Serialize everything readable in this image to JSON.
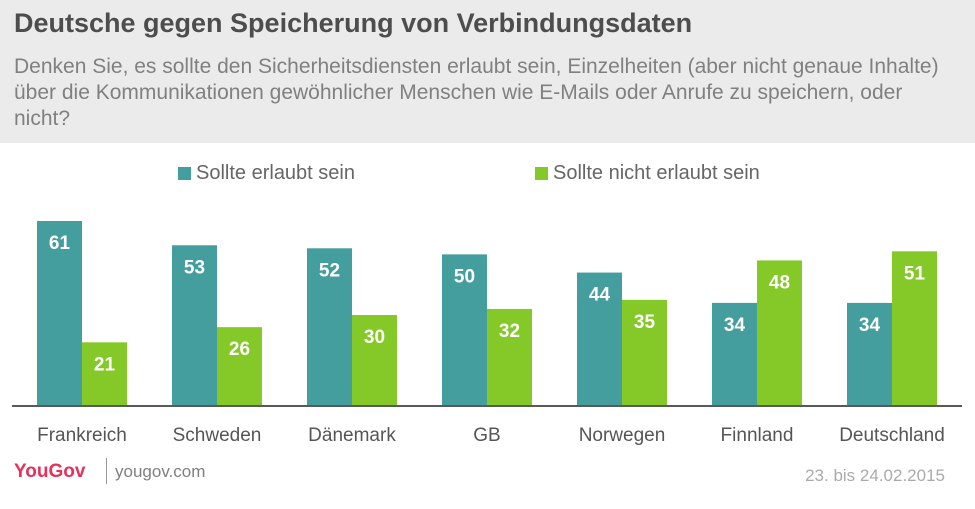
{
  "header": {
    "title": "Deutsche gegen Speicherung von Verbindungsdaten",
    "subtitle": "Denken Sie, es sollte den Sicherheitsdiensten erlaubt sein, Einzelheiten (aber nicht genaue Inhalte) über die Kommunikationen gewöhnlicher Menschen wie E-Mails oder Anrufe zu speichern, oder nicht?"
  },
  "colors": {
    "series1": "#459e9e",
    "series2": "#84c928",
    "label": "#ffffff",
    "axis": "#595959",
    "brand": "#e6325a"
  },
  "chart_data": {
    "type": "bar",
    "categories": [
      "Frankreich",
      "Schweden",
      "Dänemark",
      "GB",
      "Norwegen",
      "Finnland",
      "Deutschland"
    ],
    "series": [
      {
        "name": "Sollte erlaubt sein",
        "values": [
          61,
          53,
          52,
          50,
          44,
          34,
          34
        ]
      },
      {
        "name": "Sollte nicht erlaubt sein",
        "values": [
          21,
          26,
          30,
          32,
          35,
          48,
          51
        ]
      }
    ],
    "title": "Deutsche gegen Speicherung von Verbindungsdaten",
    "xlabel": "",
    "ylabel": "",
    "ylim": [
      0,
      61
    ],
    "grid": false,
    "legend": "top-center",
    "data_labels": true
  },
  "footer": {
    "brand": "YouGov",
    "url": "yougov.com",
    "date": "23. bis 24.02.2015"
  }
}
